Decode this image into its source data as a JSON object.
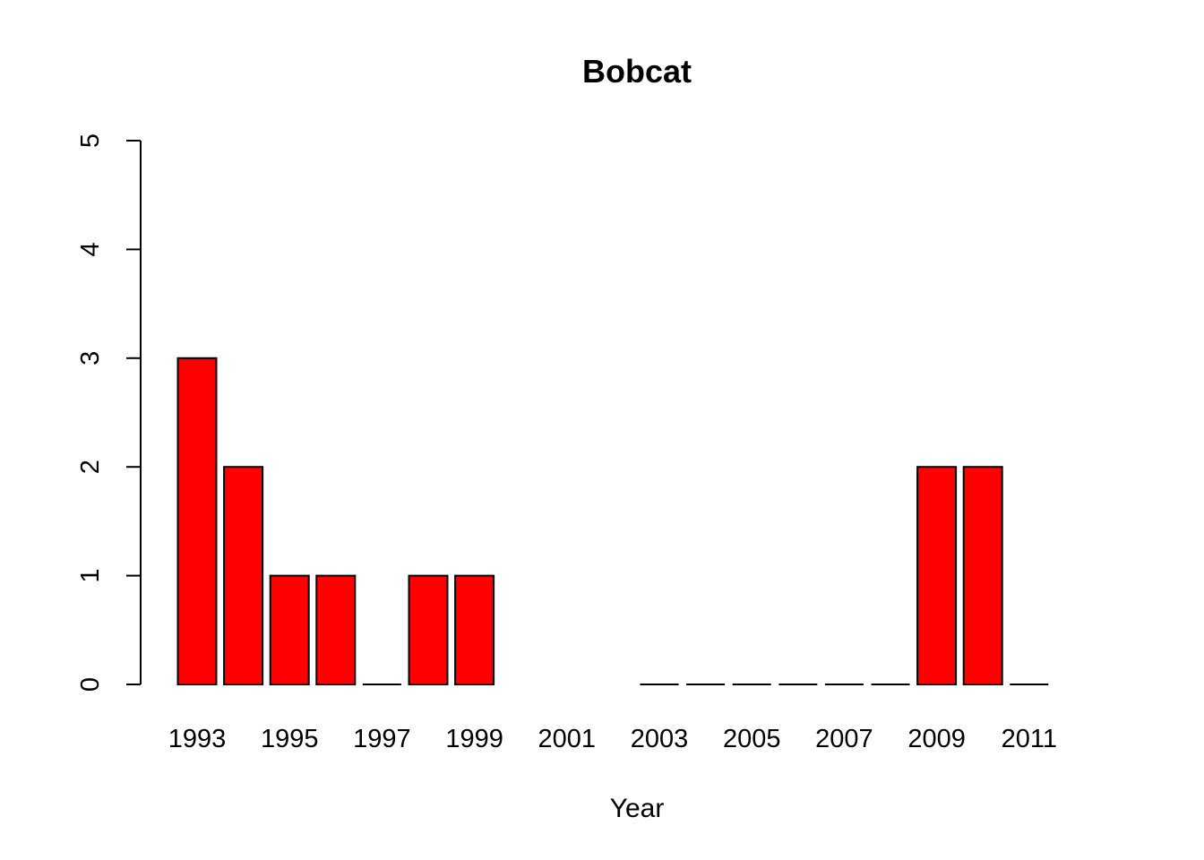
{
  "chart_data": {
    "type": "bar",
    "title": "Bobcat",
    "xlabel": "Year",
    "ylabel": "",
    "ylim": [
      0,
      5
    ],
    "yticks": [
      0,
      1,
      2,
      3,
      4,
      5
    ],
    "x_tick_labels": [
      "1993",
      "1995",
      "1997",
      "1999",
      "2001",
      "2003",
      "2005",
      "2007",
      "2009",
      "2011"
    ],
    "categories": [
      "1993",
      "1994",
      "1995",
      "1996",
      "1997",
      "1998",
      "1999",
      "2000",
      "2001",
      "2002",
      "2003",
      "2004",
      "2005",
      "2006",
      "2007",
      "2008",
      "2009",
      "2010",
      "2011"
    ],
    "values": [
      3,
      2,
      1,
      1,
      0,
      1,
      1,
      null,
      null,
      null,
      0,
      0,
      0,
      0,
      0,
      0,
      2,
      2,
      0
    ],
    "bar_color": "#ff0000",
    "grid": false,
    "legend": "none"
  }
}
